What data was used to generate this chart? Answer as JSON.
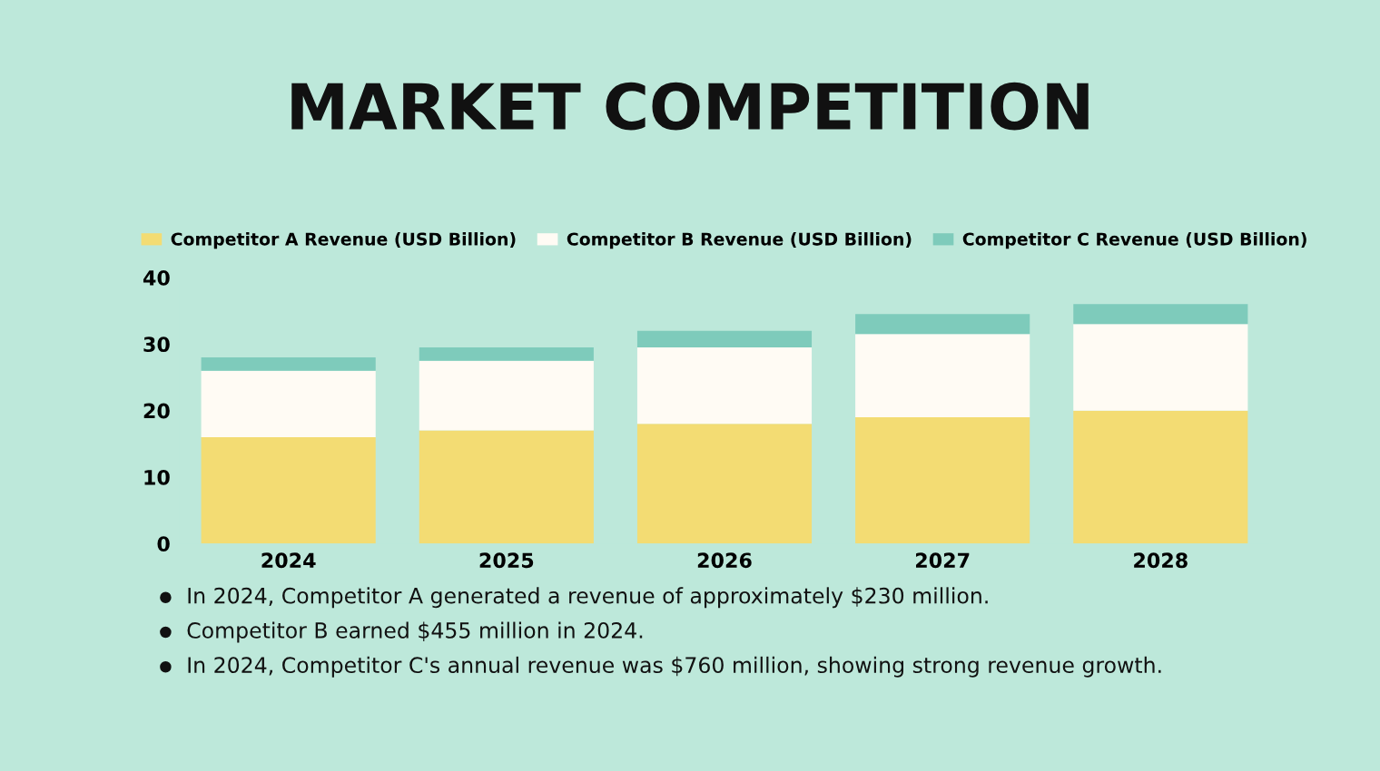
{
  "chart_data": {
    "type": "bar",
    "title": "MARKET COMPETITION",
    "stacked": true,
    "legend": "top",
    "categories": [
      "2024",
      "2025",
      "2026",
      "2027",
      "2028"
    ],
    "series": [
      {
        "name": "Competitor A Revenue (USD Billion)",
        "color": "#f3dc73",
        "values": [
          16,
          17,
          18,
          19,
          20
        ]
      },
      {
        "name": "Competitor B Revenue (USD Billion)",
        "color": "#fffbf4",
        "values": [
          10,
          10.5,
          11.5,
          12.5,
          13
        ]
      },
      {
        "name": "Competitor C Revenue (USD Billion)",
        "color": "#7ecbbb",
        "values": [
          2,
          2,
          2.5,
          3,
          3
        ]
      }
    ],
    "ylim": [
      0,
      40
    ],
    "yticks": [
      0,
      10,
      20,
      30,
      40
    ],
    "grid": false,
    "annotations": [
      "In 2024, Competitor A generated a revenue of approximately $230 million.",
      "Competitor B earned $455 million in 2024.",
      "In 2024, Competitor C's annual revenue was $760 million, showing strong revenue growth."
    ]
  }
}
